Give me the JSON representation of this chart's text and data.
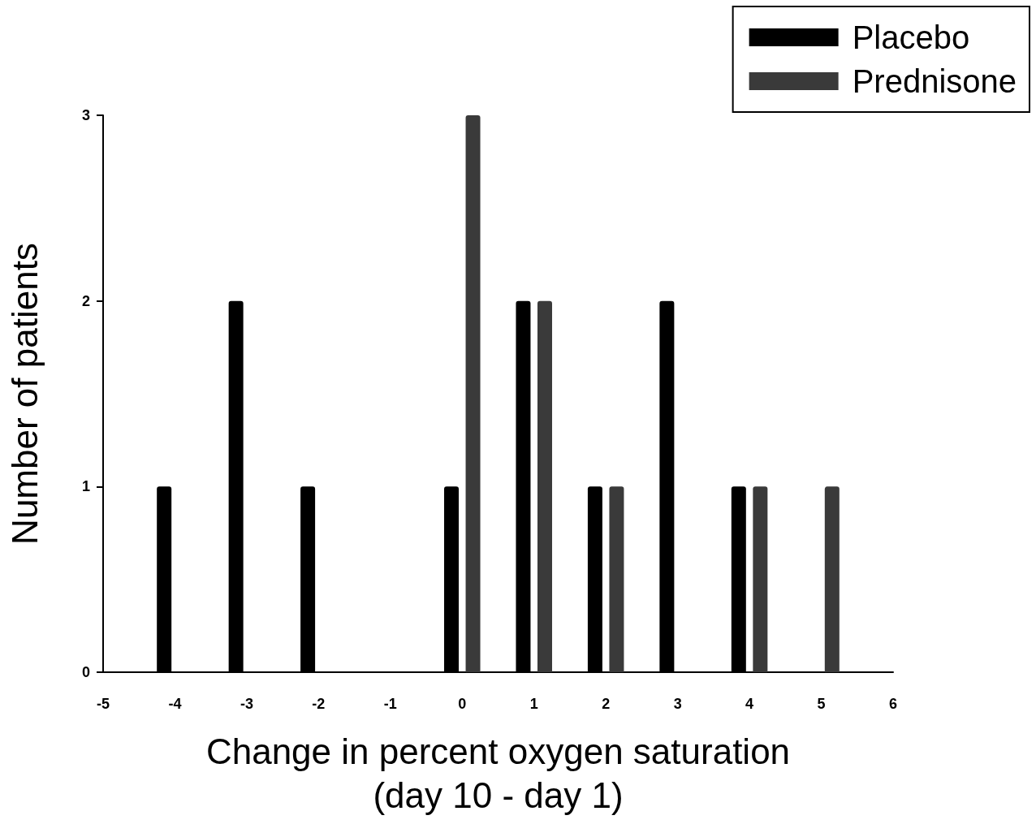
{
  "chart_data": {
    "type": "bar",
    "xlabel": "Change in percent oxygen saturation\n(day 10 - day 1)",
    "ylabel": "Number of patients",
    "series": [
      {
        "name": "Placebo",
        "color": "#000000",
        "x": [
          -4.15,
          -3.15,
          -2.15,
          -0.15,
          0.85,
          1.85,
          2.85,
          3.85
        ],
        "values": [
          1,
          2,
          1,
          1,
          2,
          1,
          2,
          1
        ]
      },
      {
        "name": "Prednisone",
        "color": "#3a3a3a",
        "x": [
          0.15,
          1.15,
          2.15,
          4.15,
          5.15
        ],
        "values": [
          3,
          2,
          1,
          1,
          1
        ]
      }
    ],
    "xlim": [
      -5,
      6
    ],
    "xticks": [
      -5,
      -4,
      -3,
      -2,
      -1,
      0,
      1,
      2,
      3,
      4,
      5,
      6
    ],
    "ylim": [
      0,
      3
    ],
    "yticks": [
      0,
      1,
      2,
      3
    ],
    "grid": false,
    "legend": "top right"
  }
}
